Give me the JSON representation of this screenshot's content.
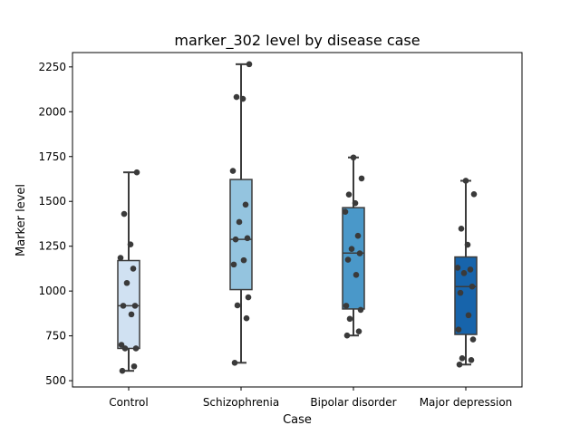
{
  "chart_data": {
    "type": "box",
    "title": "marker_302 level by disease case",
    "xlabel": "Case",
    "ylabel": "Marker level",
    "ylim": [
      465,
      2330
    ],
    "yticks": [
      500,
      750,
      1000,
      1250,
      1500,
      1750,
      2000,
      2250
    ],
    "grid": false,
    "legend": "none",
    "categories": [
      "Control",
      "Schizophrenia",
      "Bipolar disorder",
      "Major depression"
    ],
    "colors": [
      "#d0e1f2",
      "#94c4df",
      "#4a98c9",
      "#1764ab"
    ],
    "boxes": [
      {
        "category": "Control",
        "whisker_low": 555,
        "q1": 680,
        "median": 918,
        "q3": 1170,
        "whisker_high": 1662
      },
      {
        "category": "Schizophrenia",
        "whisker_low": 600,
        "q1": 1008,
        "median": 1288,
        "q3": 1622,
        "whisker_high": 2265
      },
      {
        "category": "Bipolar disorder",
        "whisker_low": 752,
        "q1": 900,
        "median": 1212,
        "q3": 1465,
        "whisker_high": 1745
      },
      {
        "category": "Major depression",
        "whisker_low": 590,
        "q1": 758,
        "median": 1025,
        "q3": 1190,
        "whisker_high": 1615
      }
    ],
    "points": [
      [
        555,
        580,
        680,
        680,
        700,
        870,
        918,
        918,
        1045,
        1125,
        1185,
        1260,
        1430,
        1662
      ],
      [
        600,
        848,
        920,
        965,
        1148,
        1172,
        1288,
        1295,
        1385,
        1482,
        1670,
        2072,
        2082,
        2265
      ],
      [
        752,
        775,
        845,
        895,
        918,
        1090,
        1175,
        1210,
        1235,
        1308,
        1442,
        1490,
        1538,
        1628,
        1745
      ],
      [
        590,
        615,
        625,
        730,
        785,
        865,
        990,
        1025,
        1100,
        1120,
        1130,
        1258,
        1348,
        1540,
        1615
      ]
    ]
  }
}
